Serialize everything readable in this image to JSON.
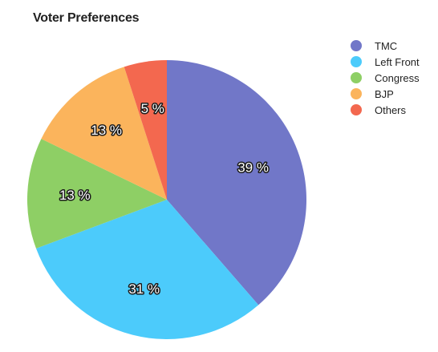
{
  "chart_data": {
    "type": "pie",
    "title": "Voter Preferences",
    "slices": [
      {
        "label": "TMC",
        "value": 39,
        "display": "39 %",
        "color": "#7177c8"
      },
      {
        "label": "Left Front",
        "value": 31,
        "display": "31 %",
        "color": "#4ccbfb"
      },
      {
        "label": "Congress",
        "value": 13,
        "display": "13 %",
        "color": "#8ecf65"
      },
      {
        "label": "BJP",
        "value": 13,
        "display": "13 %",
        "color": "#fbb45c"
      },
      {
        "label": "Others",
        "value": 5,
        "display": "5 %",
        "color": "#f3684f"
      }
    ],
    "legend_position": "top-right",
    "start_angle": "12 o'clock, clockwise"
  }
}
